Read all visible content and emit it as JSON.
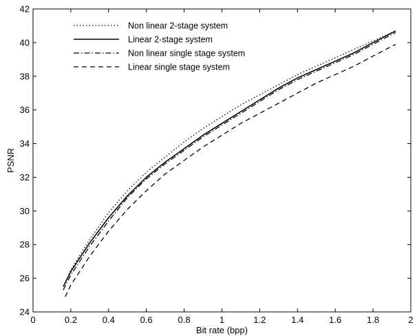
{
  "chart_data": {
    "type": "line",
    "title": "",
    "xlabel": "Bit rate (bpp)",
    "ylabel": "PSNR",
    "xlim": [
      0,
      2
    ],
    "ylim": [
      24,
      42
    ],
    "xticks": [
      0,
      0.2,
      0.4,
      0.6,
      0.8,
      1,
      1.2,
      1.4,
      1.6,
      1.8,
      2
    ],
    "xtick_labels": [
      "0",
      "0.2",
      "0.4",
      "0.6",
      "0.8",
      "1",
      "1.2",
      "1.4",
      "1.6",
      "1.8",
      "2"
    ],
    "yticks": [
      24,
      26,
      28,
      30,
      32,
      34,
      36,
      38,
      40,
      42
    ],
    "ytick_labels": [
      "24",
      "26",
      "28",
      "30",
      "32",
      "34",
      "36",
      "38",
      "40",
      "42"
    ],
    "grid": false,
    "legend_position": "top-left",
    "series": [
      {
        "name": "Non linear 2-stage system",
        "style": "dotted",
        "x": [
          0.17,
          0.2,
          0.3,
          0.4,
          0.5,
          0.6,
          0.7,
          0.8,
          0.9,
          1.0,
          1.1,
          1.2,
          1.3,
          1.4,
          1.5,
          1.6,
          1.7,
          1.8,
          1.92
        ],
        "y": [
          25.7,
          26.5,
          28.3,
          29.9,
          31.2,
          32.3,
          33.2,
          34.1,
          34.9,
          35.6,
          36.3,
          36.9,
          37.5,
          38.1,
          38.6,
          39.1,
          39.6,
          40.1,
          40.7
        ]
      },
      {
        "name": "Linear 2-stage system",
        "style": "solid",
        "x": [
          0.16,
          0.2,
          0.3,
          0.4,
          0.5,
          0.6,
          0.7,
          0.8,
          0.9,
          1.0,
          1.1,
          1.2,
          1.3,
          1.4,
          1.5,
          1.6,
          1.7,
          1.8,
          1.92
        ],
        "y": [
          25.5,
          26.4,
          28.1,
          29.6,
          30.9,
          32.0,
          32.9,
          33.7,
          34.5,
          35.2,
          35.9,
          36.6,
          37.3,
          37.9,
          38.4,
          38.9,
          39.4,
          40.0,
          40.7
        ]
      },
      {
        "name": "Non linear single stage system",
        "style": "dashdot",
        "x": [
          0.16,
          0.2,
          0.3,
          0.4,
          0.5,
          0.6,
          0.7,
          0.8,
          0.9,
          1.0,
          1.1,
          1.2,
          1.3,
          1.4,
          1.5,
          1.6,
          1.7,
          1.8,
          1.92
        ],
        "y": [
          25.3,
          26.2,
          27.9,
          29.4,
          30.8,
          31.9,
          32.8,
          33.6,
          34.4,
          35.1,
          35.8,
          36.5,
          37.2,
          37.8,
          38.3,
          38.8,
          39.3,
          39.9,
          40.6
        ]
      },
      {
        "name": "Linear single stage system",
        "style": "dashed",
        "x": [
          0.17,
          0.2,
          0.3,
          0.4,
          0.5,
          0.6,
          0.7,
          0.8,
          0.9,
          1.0,
          1.1,
          1.2,
          1.3,
          1.4,
          1.5,
          1.6,
          1.7,
          1.8,
          1.92
        ],
        "y": [
          24.9,
          25.6,
          27.3,
          28.8,
          30.1,
          31.2,
          32.2,
          33.0,
          33.8,
          34.5,
          35.2,
          35.8,
          36.4,
          37.0,
          37.6,
          38.1,
          38.6,
          39.2,
          39.9
        ]
      }
    ]
  }
}
